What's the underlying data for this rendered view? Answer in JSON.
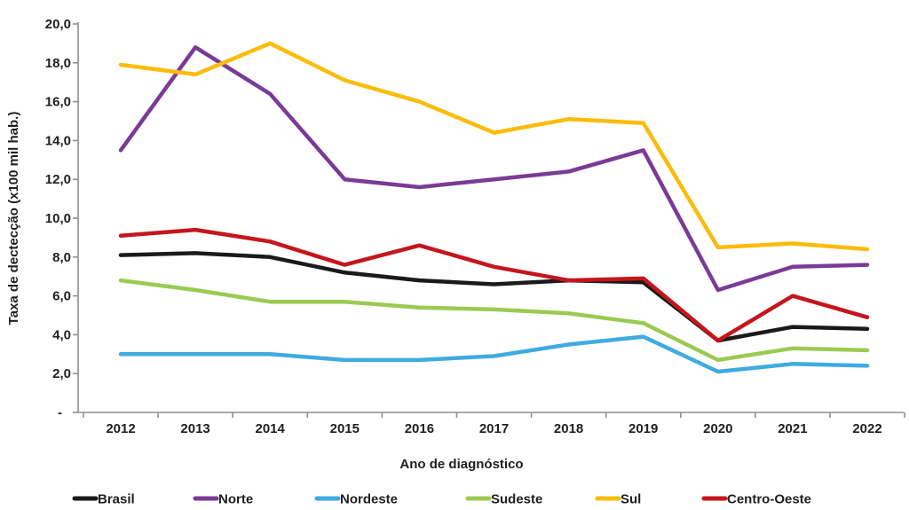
{
  "chart_data": {
    "type": "line",
    "title": "",
    "xlabel": "Ano de diagnóstico",
    "ylabel": "Taxa de dectecção (x100 mil hab.)",
    "categories": [
      "2012",
      "2013",
      "2014",
      "2015",
      "2016",
      "2017",
      "2018",
      "2019",
      "2020",
      "2021",
      "2022"
    ],
    "series": [
      {
        "name": "Brasil",
        "color": "#1a1a1a",
        "values": [
          8.1,
          8.2,
          8.0,
          7.2,
          6.8,
          6.6,
          6.8,
          6.7,
          3.7,
          4.4,
          4.3
        ]
      },
      {
        "name": "Norte",
        "color": "#7a3b97",
        "values": [
          13.5,
          18.8,
          16.4,
          12.0,
          11.6,
          12.0,
          12.4,
          13.5,
          6.3,
          7.5,
          7.6
        ]
      },
      {
        "name": "Nordeste",
        "color": "#3fabe0",
        "values": [
          3.0,
          3.0,
          3.0,
          2.7,
          2.7,
          2.9,
          3.5,
          3.9,
          2.1,
          2.5,
          2.4
        ]
      },
      {
        "name": "Sudeste",
        "color": "#9bca52",
        "values": [
          6.8,
          6.3,
          5.7,
          5.7,
          5.4,
          5.3,
          5.1,
          4.6,
          2.7,
          3.3,
          3.2
        ]
      },
      {
        "name": "Sul",
        "color": "#fbbc09",
        "values": [
          17.9,
          17.4,
          19.0,
          17.1,
          16.0,
          14.4,
          15.1,
          14.9,
          8.5,
          8.7,
          8.4
        ]
      },
      {
        "name": "Centro-Oeste",
        "color": "#c4161c",
        "values": [
          9.1,
          9.4,
          8.8,
          7.6,
          8.6,
          7.5,
          6.8,
          6.9,
          3.7,
          6.0,
          4.9
        ]
      }
    ],
    "ylim": [
      0,
      20
    ],
    "ytick_step": 2,
    "ytick_labels_top_to_bottom": [
      "20,0",
      "18,0",
      "16,0",
      "14,0",
      "12,0",
      "10,0",
      "8,0",
      "6,0",
      "4,0",
      "2,0",
      "-"
    ],
    "grid": false,
    "legend_position": "bottom"
  },
  "style": {
    "axis_color": "#8f8f8f",
    "text_color": "#1f1f1f",
    "line_width": 4.5
  }
}
